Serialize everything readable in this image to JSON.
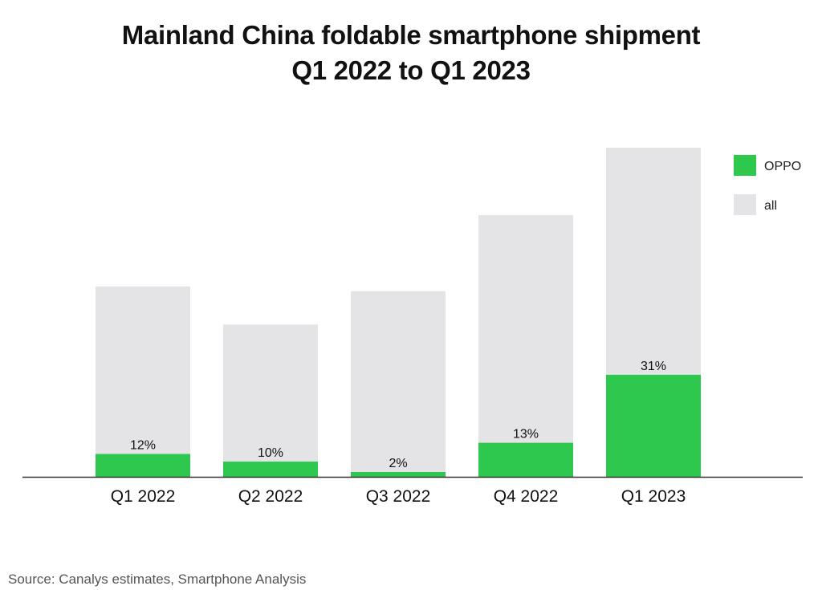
{
  "chart_data": {
    "type": "bar",
    "stacked": true,
    "title": [
      "Mainland China foldable smartphone shipment",
      "Q1 2022 to Q1 2023"
    ],
    "categories": [
      "Q1 2022",
      "Q2 2022",
      "Q3 2022",
      "Q4 2022",
      "Q1 2023"
    ],
    "series": [
      {
        "name": "all",
        "values": [
          240,
          192,
          234,
          330,
          415
        ],
        "color": "#e4e4e6"
      },
      {
        "name": "OPPO",
        "share_labels": [
          "12%",
          "10%",
          "2%",
          "13%",
          "31%"
        ],
        "share": [
          0.12,
          0.1,
          0.02,
          0.13,
          0.31
        ],
        "color": "#2ec84f"
      }
    ],
    "legend": {
      "position": "top-right",
      "items": [
        "OPPO",
        "all"
      ]
    },
    "ylim": [
      0,
      420
    ],
    "xlabel": "",
    "ylabel": "",
    "grid": false
  },
  "source": "Source: Canalys estimates, Smartphone Analysis"
}
